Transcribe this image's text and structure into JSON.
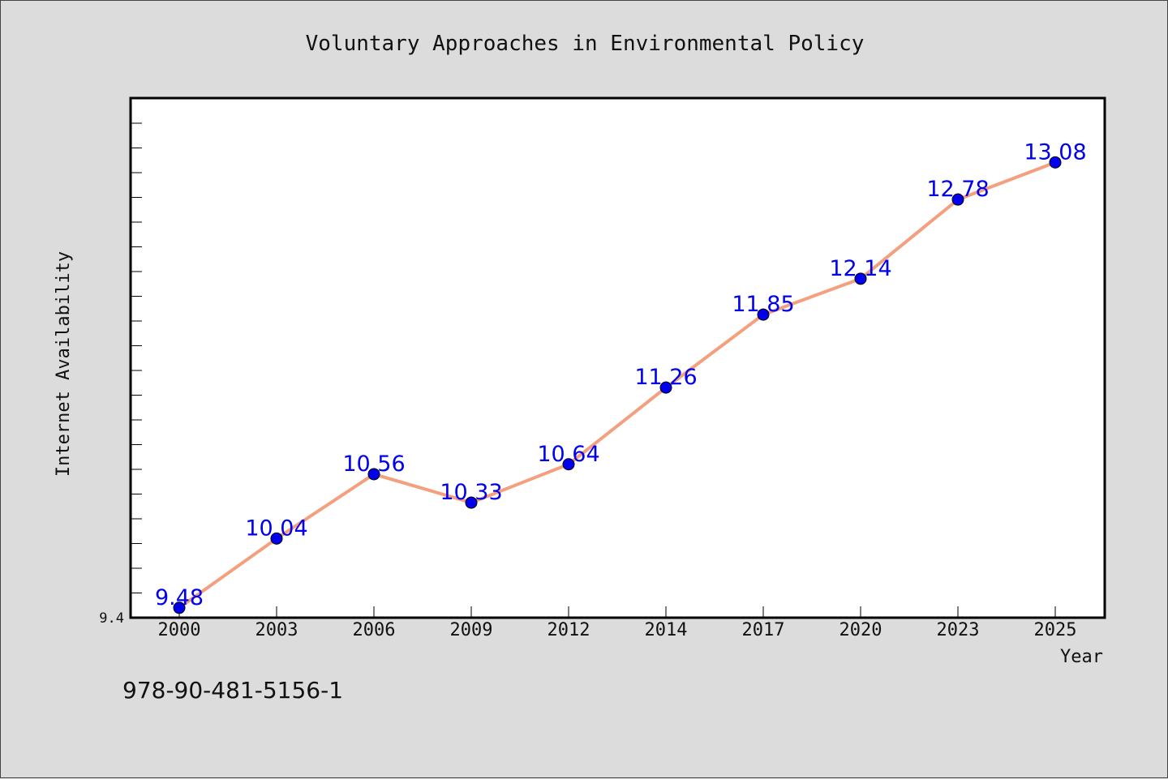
{
  "chart_data": {
    "type": "line",
    "title": "Voluntary Approaches in Environmental Policy",
    "xlabel": "Year",
    "ylabel": "Internet Availability",
    "categories": [
      "2000",
      "2003",
      "2006",
      "2009",
      "2012",
      "2014",
      "2017",
      "2020",
      "2023",
      "2025"
    ],
    "series": [
      {
        "values": [
          9.48,
          10.04,
          10.56,
          10.33,
          10.64,
          11.26,
          11.85,
          12.14,
          12.78,
          13.08
        ],
        "data_labels": [
          "9.48",
          "10.04",
          "10.56",
          "10.33",
          "10.64",
          "11.26",
          "11.85",
          "12.14",
          "12.78",
          "13.08"
        ],
        "line_color": "#f4a07e",
        "marker_color": "#0000ee",
        "label_color": "#0000ee"
      }
    ],
    "ylim": [
      9.4,
      13.6
    ],
    "yticks": [
      "9.4"
    ],
    "grid": false,
    "legend": false
  },
  "footer": {
    "isbn": "978-90-481-5156-1"
  }
}
